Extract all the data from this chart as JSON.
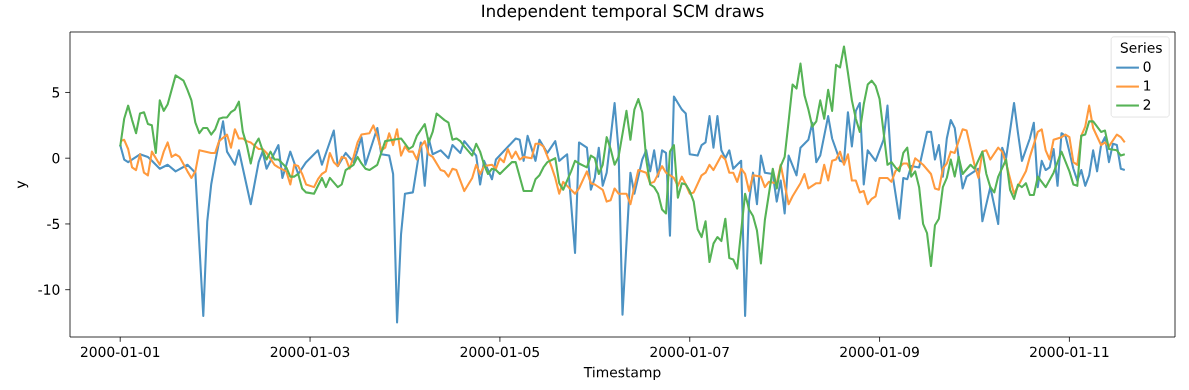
{
  "chart_data": {
    "type": "line",
    "title": "Independent temporal SCM draws",
    "xlabel": "Timestamp",
    "ylabel": "y",
    "legend_title": "Series",
    "legend": "top right",
    "xlim": [
      "1999-12-31T11:18",
      "2000-01-12T02:42"
    ],
    "ylim": [
      -13.6,
      9.6
    ],
    "xticks": [
      "2000-01-01",
      "2000-01-03",
      "2000-01-05",
      "2000-01-07",
      "2000-01-09",
      "2000-01-11"
    ],
    "yticks": [
      -10,
      -5,
      0,
      5
    ],
    "series": [
      {
        "name": "0",
        "color": "#4c92c3",
        "x": [
          "2000-01-01T00:00",
          "2000-01-01T01:00",
          "2000-01-01T02:00",
          "2000-01-01T05:00",
          "2000-01-01T07:00",
          "2000-01-01T08:00",
          "2000-01-01T10:00",
          "2000-01-01T12:00",
          "2000-01-01T14:00",
          "2000-01-01T17:00",
          "2000-01-01T19:00",
          "2000-01-01T21:00",
          "2000-01-01T22:00",
          "2000-01-01T23:00",
          "2000-01-02T00:00",
          "2000-01-02T02:00",
          "2000-01-02T03:00",
          "2000-01-02T05:00",
          "2000-01-02T06:00",
          "2000-01-02T09:00",
          "2000-01-02T11:00",
          "2000-01-02T12:00",
          "2000-01-02T13:00",
          "2000-01-02T16:00",
          "2000-01-02T17:00",
          "2000-01-02T19:00",
          "2000-01-02T21:00",
          "2000-01-02T23:00",
          "2000-01-03T02:00",
          "2000-01-03T03:00",
          "2000-01-03T06:00",
          "2000-01-03T07:00",
          "2000-01-03T09:00",
          "2000-01-03T11:00",
          "2000-01-03T12:00",
          "2000-01-03T13:00",
          "2000-01-03T14:00",
          "2000-01-03T17:00",
          "2000-01-03T18:00",
          "2000-01-03T20:00",
          "2000-01-03T21:00",
          "2000-01-03T22:00",
          "2000-01-03T23:00",
          "2000-01-04T00:00",
          "2000-01-04T02:00",
          "2000-01-04T04:00",
          "2000-01-04T05:00",
          "2000-01-04T06:00",
          "2000-01-04T07:00",
          "2000-01-04T09:00",
          "2000-01-04T11:00",
          "2000-01-04T12:00",
          "2000-01-04T14:00",
          "2000-01-04T15:00",
          "2000-01-04T18:00",
          "2000-01-04T19:00",
          "2000-01-04T20:00",
          "2000-01-04T22:00",
          "2000-01-04T23:00",
          "2000-01-05T04:00",
          "2000-01-05T05:00",
          "2000-01-05T06:00",
          "2000-01-05T07:00",
          "2000-01-05T09:00",
          "2000-01-05T10:00",
          "2000-01-05T12:00",
          "2000-01-05T14:00",
          "2000-01-05T15:00",
          "2000-01-05T17:00",
          "2000-01-05T19:00",
          "2000-01-05T20:00",
          "2000-01-05T22:00",
          "2000-01-05T23:00",
          "2000-01-06T00:00",
          "2000-01-06T01:00",
          "2000-01-06T02:00",
          "2000-01-06T03:00",
          "2000-01-06T05:00",
          "2000-01-06T06:00",
          "2000-01-06T07:00",
          "2000-01-06T09:00",
          "2000-01-06T10:00",
          "2000-01-06T12:00",
          "2000-01-06T13:00",
          "2000-01-06T14:00",
          "2000-01-06T15:00",
          "2000-01-06T16:00",
          "2000-01-06T17:00",
          "2000-01-06T18:00",
          "2000-01-06T19:00",
          "2000-01-06T20:00",
          "2000-01-06T22:00",
          "2000-01-06T23:00",
          "2000-01-07T00:00",
          "2000-01-07T02:00",
          "2000-01-07T03:00",
          "2000-01-07T04:00",
          "2000-01-07T05:00",
          "2000-01-07T06:00",
          "2000-01-07T07:00",
          "2000-01-07T08:00",
          "2000-01-07T09:00",
          "2000-01-07T10:00",
          "2000-01-07T11:00",
          "2000-01-07T13:00",
          "2000-01-07T14:00",
          "2000-01-07T15:00",
          "2000-01-07T16:00",
          "2000-01-07T17:00",
          "2000-01-07T18:00",
          "2000-01-07T19:00",
          "2000-01-07T21:00",
          "2000-01-07T22:00",
          "2000-01-07T23:00",
          "2000-01-08T00:00",
          "2000-01-08T01:00",
          "2000-01-08T03:00",
          "2000-01-08T04:00",
          "2000-01-08T06:00",
          "2000-01-08T07:00",
          "2000-01-08T08:00",
          "2000-01-08T09:00",
          "2000-01-08T11:00",
          "2000-01-08T12:00",
          "2000-01-08T14:00",
          "2000-01-08T15:00",
          "2000-01-08T16:00",
          "2000-01-08T17:00",
          "2000-01-08T18:00",
          "2000-01-08T19:00",
          "2000-01-08T20:00",
          "2000-01-08T21:00",
          "2000-01-08T23:00",
          "2000-01-09T01:00",
          "2000-01-09T02:00",
          "2000-01-09T03:00",
          "2000-01-09T05:00",
          "2000-01-09T06:00",
          "2000-01-09T07:00",
          "2000-01-09T08:00",
          "2000-01-09T10:00",
          "2000-01-09T12:00",
          "2000-01-09T13:00",
          "2000-01-09T14:00",
          "2000-01-09T15:00",
          "2000-01-09T16:00",
          "2000-01-09T17:00",
          "2000-01-09T18:00",
          "2000-01-09T19:00",
          "2000-01-09T21:00",
          "2000-01-09T22:00",
          "2000-01-10T01:00",
          "2000-01-10T02:00",
          "2000-01-10T04:00",
          "2000-01-10T06:00",
          "2000-01-10T07:00",
          "2000-01-10T08:00",
          "2000-01-10T10:00",
          "2000-01-10T11:00",
          "2000-01-10T12:00",
          "2000-01-10T14:00",
          "2000-01-10T15:00",
          "2000-01-10T16:00",
          "2000-01-10T17:00",
          "2000-01-10T18:00",
          "2000-01-10T19:00",
          "2000-01-10T20:00",
          "2000-01-10T21:00",
          "2000-01-10T22:00",
          "2000-01-10T23:00",
          "2000-01-11T00:00",
          "2000-01-11T01:00",
          "2000-01-11T02:00",
          "2000-01-11T03:00",
          "2000-01-11T04:00",
          "2000-01-11T05:00",
          "2000-01-11T06:00",
          "2000-01-11T07:00",
          "2000-01-11T08:00",
          "2000-01-11T09:00",
          "2000-01-11T10:00",
          "2000-01-11T11:00",
          "2000-01-11T12:00",
          "2000-01-11T13:00",
          "2000-01-11T14:00"
        ],
        "values": [
          1.0,
          -0.1,
          -0.3,
          0.3,
          0.1,
          -0.2,
          -0.8,
          -0.5,
          -1.0,
          -0.5,
          -1.1,
          -12.0,
          -4.8,
          -2.0,
          -0.3,
          2.8,
          0.5,
          -0.5,
          0.6,
          -3.5,
          -0.3,
          0.5,
          -0.8,
          1.0,
          -1.5,
          0.5,
          -1.2,
          -0.3,
          0.6,
          -0.5,
          2.1,
          -0.6,
          0.4,
          -0.3,
          0.6,
          1.6,
          -0.5,
          2.3,
          0.3,
          0.2,
          -1.2,
          -12.5,
          -5.8,
          -2.7,
          -2.6,
          1.2,
          -2.1,
          1.5,
          0.3,
          0.6,
          0.0,
          1.0,
          0.4,
          1.3,
          0.2,
          -2.0,
          -0.2,
          -1.6,
          -0.1,
          1.5,
          1.4,
          -0.2,
          1.7,
          -0.2,
          1.4,
          0.4,
          1.3,
          -0.2,
          0.3,
          -7.2,
          1.2,
          0.8,
          -2.4,
          -1.5,
          0.8,
          -2.1,
          -1.1,
          4.2,
          0.6,
          -11.9,
          -1.1,
          -2.7,
          -0.1,
          0.6,
          -1.0,
          0.6,
          -1.4,
          0.6,
          0.4,
          -5.9,
          4.7,
          3.7,
          3.4,
          0.3,
          0.2,
          1.0,
          1.2,
          3.2,
          0.8,
          3.2,
          0.6,
          0.0,
          0.6,
          -0.8,
          -0.2,
          -12.0,
          -3.3,
          -1.1,
          -3.5,
          0.2,
          -1.1,
          -1.2,
          -3.3,
          -1.7,
          -4.2,
          0.2,
          -1.3,
          0.8,
          1.4,
          2.7,
          -0.3,
          0.2,
          3.2,
          1.5,
          -0.2,
          -0.3,
          3.5,
          0.9,
          3.6,
          4.2,
          -2.0,
          0.6,
          -0.2,
          1.4,
          4.0,
          -0.7,
          -4.6,
          -1.5,
          -1.6,
          -0.6,
          -0.7,
          2.0,
          2.0,
          -0.1,
          1.0,
          -1.4,
          1.5,
          2.9,
          2.3,
          -2.3,
          -1.4,
          -0.8,
          -4.8,
          -2.2,
          -5.0,
          0.8,
          0.0,
          4.2,
          1.9,
          -0.2,
          1.5,
          2.7,
          -2.2,
          -0.2,
          -0.9,
          -0.7,
          0.7,
          -2.1,
          1.9,
          1.7,
          0.5,
          -0.8,
          -1.7,
          -0.9,
          -2.1,
          -1.3,
          0.6,
          -1.0,
          1.0,
          1.6,
          -0.3,
          1.1,
          1.0,
          -0.8,
          -0.9
        ]
      },
      {
        "name": "1",
        "color": "#ff9a3e",
        "x": [
          "2000-01-01T00:00",
          "2000-01-01T01:00",
          "2000-01-01T02:00",
          "2000-01-01T03:00",
          "2000-01-01T04:00",
          "2000-01-01T05:00",
          "2000-01-01T06:00",
          "2000-01-01T07:00",
          "2000-01-01T08:00",
          "2000-01-01T10:00",
          "2000-01-01T11:00",
          "2000-01-01T12:00",
          "2000-01-01T13:00",
          "2000-01-01T14:00",
          "2000-01-01T15:00",
          "2000-01-01T17:00",
          "2000-01-01T18:00",
          "2000-01-01T19:00",
          "2000-01-01T20:00",
          "2000-01-01T23:00",
          "2000-01-02T00:00",
          "2000-01-02T01:00",
          "2000-01-02T03:00",
          "2000-01-02T04:00",
          "2000-01-02T05:00",
          "2000-01-02T06:00",
          "2000-01-02T07:00",
          "2000-01-02T08:00",
          "2000-01-02T09:00",
          "2000-01-02T11:00",
          "2000-01-02T12:00",
          "2000-01-02T13:00",
          "2000-01-02T15:00",
          "2000-01-02T16:00",
          "2000-01-02T18:00",
          "2000-01-02T19:00",
          "2000-01-02T20:00",
          "2000-01-02T21:00",
          "2000-01-02T22:00",
          "2000-01-02T23:00",
          "2000-01-03T01:00",
          "2000-01-03T02:00",
          "2000-01-03T03:00",
          "2000-01-03T04:00",
          "2000-01-03T05:00",
          "2000-01-03T06:00",
          "2000-01-03T07:00",
          "2000-01-03T08:00",
          "2000-01-03T09:00",
          "2000-01-03T10:00",
          "2000-01-03T11:00",
          "2000-01-03T12:00",
          "2000-01-03T13:00",
          "2000-01-03T15:00",
          "2000-01-03T16:00",
          "2000-01-03T17:00",
          "2000-01-03T18:00",
          "2000-01-03T19:00",
          "2000-01-03T20:00",
          "2000-01-03T21:00",
          "2000-01-03T22:00",
          "2000-01-03T23:00",
          "2000-01-04T00:00",
          "2000-01-04T01:00",
          "2000-01-04T02:00",
          "2000-01-04T03:00",
          "2000-01-04T04:00",
          "2000-01-04T05:00",
          "2000-01-04T06:00",
          "2000-01-04T07:00",
          "2000-01-04T09:00",
          "2000-01-04T10:00",
          "2000-01-04T11:00",
          "2000-01-04T12:00",
          "2000-01-04T13:00",
          "2000-01-04T14:00",
          "2000-01-04T15:00",
          "2000-01-04T17:00",
          "2000-01-04T18:00",
          "2000-01-04T19:00",
          "2000-01-04T20:00",
          "2000-01-04T22:00",
          "2000-01-04T23:00",
          "2000-01-05T00:00",
          "2000-01-05T01:00",
          "2000-01-05T02:00",
          "2000-01-05T03:00",
          "2000-01-05T04:00",
          "2000-01-05T05:00",
          "2000-01-05T06:00",
          "2000-01-05T08:00",
          "2000-01-05T09:00",
          "2000-01-05T10:00",
          "2000-01-05T11:00",
          "2000-01-05T13:00",
          "2000-01-05T14:00",
          "2000-01-05T15:00",
          "2000-01-05T16:00",
          "2000-01-05T19:00",
          "2000-01-05T20:00",
          "2000-01-05T22:00",
          "2000-01-05T23:00",
          "2000-01-06T00:00",
          "2000-01-06T02:00",
          "2000-01-06T03:00",
          "2000-01-06T04:00",
          "2000-01-06T05:00",
          "2000-01-06T06:00",
          "2000-01-06T08:00",
          "2000-01-06T09:00",
          "2000-01-06T11:00",
          "2000-01-06T13:00",
          "2000-01-06T14:00",
          "2000-01-06T15:00",
          "2000-01-06T17:00",
          "2000-01-06T18:00",
          "2000-01-06T20:00",
          "2000-01-06T21:00",
          "2000-01-06T22:00",
          "2000-01-06T23:00",
          "2000-01-07T00:00",
          "2000-01-07T01:00",
          "2000-01-07T03:00",
          "2000-01-07T04:00",
          "2000-01-07T05:00",
          "2000-01-07T06:00",
          "2000-01-07T08:00",
          "2000-01-07T09:00",
          "2000-01-07T10:00",
          "2000-01-07T11:00",
          "2000-01-07T12:00",
          "2000-01-07T13:00",
          "2000-01-07T14:00",
          "2000-01-07T15:00",
          "2000-01-07T16:00",
          "2000-01-07T18:00",
          "2000-01-07T19:00",
          "2000-01-07T20:00",
          "2000-01-07T22:00",
          "2000-01-07T23:00",
          "2000-01-08T01:00",
          "2000-01-08T02:00",
          "2000-01-08T04:00",
          "2000-01-08T05:00",
          "2000-01-08T06:00",
          "2000-01-08T08:00",
          "2000-01-08T09:00",
          "2000-01-08T10:00",
          "2000-01-08T11:00",
          "2000-01-08T12:00",
          "2000-01-08T13:00",
          "2000-01-08T14:00",
          "2000-01-08T15:00",
          "2000-01-08T16:00",
          "2000-01-08T17:00",
          "2000-01-08T18:00",
          "2000-01-08T19:00",
          "2000-01-08T20:00",
          "2000-01-08T21:00",
          "2000-01-08T22:00",
          "2000-01-08T23:00",
          "2000-01-09T00:00",
          "2000-01-09T02:00",
          "2000-01-09T03:00",
          "2000-01-09T04:00",
          "2000-01-09T06:00",
          "2000-01-09T07:00",
          "2000-01-09T08:00",
          "2000-01-09T09:00",
          "2000-01-09T11:00",
          "2000-01-09T13:00",
          "2000-01-09T14:00",
          "2000-01-09T15:00",
          "2000-01-09T16:00",
          "2000-01-09T17:00",
          "2000-01-09T18:00",
          "2000-01-09T19:00",
          "2000-01-09T21:00",
          "2000-01-09T22:00",
          "2000-01-09T23:00",
          "2000-01-10T00:00",
          "2000-01-10T01:00",
          "2000-01-10T02:00",
          "2000-01-10T03:00",
          "2000-01-10T04:00",
          "2000-01-10T06:00",
          "2000-01-10T07:00",
          "2000-01-10T08:00",
          "2000-01-10T10:00",
          "2000-01-10T13:00",
          "2000-01-10T14:00",
          "2000-01-10T16:00",
          "2000-01-10T17:00",
          "2000-01-10T18:00",
          "2000-01-10T19:00",
          "2000-01-10T20:00",
          "2000-01-10T22:00",
          "2000-01-10T23:00",
          "2000-01-11T00:00",
          "2000-01-11T01:00",
          "2000-01-11T02:00",
          "2000-01-11T03:00",
          "2000-01-11T04:00",
          "2000-01-11T05:00",
          "2000-01-11T06:00",
          "2000-01-11T08:00",
          "2000-01-11T09:00",
          "2000-01-11T10:00",
          "2000-01-11T12:00",
          "2000-01-11T13:00",
          "2000-01-11T14:00"
        ],
        "values": [
          1.3,
          1.4,
          0.7,
          -0.7,
          -0.9,
          0.3,
          -1.1,
          -1.3,
          0.5,
          -0.5,
          0.5,
          1.2,
          0.1,
          0.3,
          0.1,
          -1.0,
          -1.5,
          -1.0,
          0.6,
          0.4,
          0.4,
          1.3,
          1.8,
          0.8,
          2.2,
          1.5,
          1.5,
          1.3,
          1.2,
          0.7,
          0.7,
          0.4,
          -0.5,
          -0.7,
          -1.0,
          -2.0,
          -0.5,
          -0.6,
          -1.2,
          -2.0,
          -2.2,
          -1.6,
          -1.2,
          -1.0,
          0.4,
          -0.3,
          -0.6,
          0.1,
          0.0,
          -0.8,
          0.1,
          1.2,
          1.8,
          1.9,
          2.5,
          1.7,
          0.6,
          0.8,
          1.9,
          1.0,
          2.2,
          0.2,
          0.9,
          0.5,
          0.5,
          -0.1,
          0.9,
          1.3,
          0.3,
          0.1,
          -0.9,
          -1.0,
          -1.4,
          -0.8,
          -0.9,
          -1.7,
          -2.5,
          -1.5,
          -0.5,
          -1.2,
          -0.6,
          -0.5,
          -0.8,
          0.0,
          -0.3,
          0.7,
          0.0,
          0.5,
          -0.1,
          0.1,
          0.0,
          1.1,
          1.1,
          0.9,
          -0.6,
          -1.5,
          -2.7,
          -1.8,
          -2.7,
          -2.3,
          -1.0,
          -1.9,
          -2.0,
          -2.4,
          -3.3,
          -3.2,
          -2.3,
          -2.7,
          -2.7,
          -3.5,
          -0.9,
          -1.1,
          -1.9,
          -1.8,
          -0.6,
          -1.1,
          -1.5,
          -2.1,
          -1.4,
          -2.0,
          -2.7,
          -2.6,
          -1.3,
          -1.1,
          -0.5,
          -0.9,
          0.2,
          -0.1,
          -1.1,
          -1.1,
          -1.8,
          -0.8,
          -1.2,
          -2.5,
          -1.3,
          -1.4,
          -2.2,
          -1.8,
          -1.9,
          -0.5,
          -3.5,
          -2.9,
          -1.9,
          -1.2,
          -2.3,
          -1.9,
          -1.9,
          -0.5,
          -1.7,
          -0.2,
          -0.1,
          0.5,
          -0.5,
          0.3,
          -1.7,
          -1.7,
          -2.6,
          -2.5,
          -3.5,
          -3.1,
          -2.9,
          -1.5,
          -1.5,
          -1.8,
          -1.0,
          -0.4,
          -0.4,
          -1.0,
          0.0,
          -0.5,
          -1.2,
          -2.3,
          -2.4,
          -0.8,
          -0.4,
          0.5,
          0.4,
          2.2,
          2.1,
          0.8,
          -0.5,
          -1.5,
          0.5,
          0.6,
          -0.1,
          0.8,
          0.5,
          -0.4,
          -2.7,
          -1.0,
          0.1,
          2.0,
          2.2,
          0.6,
          -0.1,
          1.4,
          1.6,
          1.8,
          1.6,
          -0.3,
          -0.5,
          1.7,
          2.4,
          4.0,
          2.3,
          1.0,
          1.2,
          0.9,
          1.8,
          1.6,
          1.2
        ]
      },
      {
        "name": "2",
        "color": "#56b356",
        "x": [
          "2000-01-01T00:00",
          "2000-01-01T01:00",
          "2000-01-01T02:00",
          "2000-01-01T03:00",
          "2000-01-01T04:00",
          "2000-01-01T05:00",
          "2000-01-01T06:00",
          "2000-01-01T07:00",
          "2000-01-01T08:00",
          "2000-01-01T09:00",
          "2000-01-01T10:00",
          "2000-01-01T11:00",
          "2000-01-01T12:00",
          "2000-01-01T14:00",
          "2000-01-01T16:00",
          "2000-01-01T17:00",
          "2000-01-01T18:00",
          "2000-01-01T19:00",
          "2000-01-01T20:00",
          "2000-01-01T21:00",
          "2000-01-01T22:00",
          "2000-01-01T23:00",
          "2000-01-02T00:00",
          "2000-01-02T01:00",
          "2000-01-02T02:00",
          "2000-01-02T03:00",
          "2000-01-02T04:00",
          "2000-01-02T05:00",
          "2000-01-02T06:00",
          "2000-01-02T07:00",
          "2000-01-02T08:00",
          "2000-01-02T09:00",
          "2000-01-02T10:00",
          "2000-01-02T11:00",
          "2000-01-02T12:00",
          "2000-01-02T13:00",
          "2000-01-02T14:00",
          "2000-01-02T15:00",
          "2000-01-02T16:00",
          "2000-01-02T18:00",
          "2000-01-02T19:00",
          "2000-01-02T20:00",
          "2000-01-02T21:00",
          "2000-01-02T22:00",
          "2000-01-02T23:00",
          "2000-01-03T01:00",
          "2000-01-03T02:00",
          "2000-01-03T03:00",
          "2000-01-03T04:00",
          "2000-01-03T05:00",
          "2000-01-03T07:00",
          "2000-01-03T08:00",
          "2000-01-03T09:00",
          "2000-01-03T11:00",
          "2000-01-03T12:00",
          "2000-01-03T13:00",
          "2000-01-03T14:00",
          "2000-01-03T15:00",
          "2000-01-03T17:00",
          "2000-01-03T18:00",
          "2000-01-03T19:00",
          "2000-01-03T21:00",
          "2000-01-03T23:00",
          "2000-01-04T00:00",
          "2000-01-04T01:00",
          "2000-01-04T02:00",
          "2000-01-04T03:00",
          "2000-01-04T05:00",
          "2000-01-04T06:00",
          "2000-01-04T07:00",
          "2000-01-04T08:00",
          "2000-01-04T10:00",
          "2000-01-04T11:00",
          "2000-01-04T12:00",
          "2000-01-04T13:00",
          "2000-01-04T14:00",
          "2000-01-04T15:00",
          "2000-01-04T17:00",
          "2000-01-04T18:00",
          "2000-01-04T19:00",
          "2000-01-04T20:00",
          "2000-01-04T21:00",
          "2000-01-04T22:00",
          "2000-01-04T23:00",
          "2000-01-05T00:00",
          "2000-01-05T01:00",
          "2000-01-05T03:00",
          "2000-01-05T04:00",
          "2000-01-05T06:00",
          "2000-01-05T08:00",
          "2000-01-05T09:00",
          "2000-01-05T10:00",
          "2000-01-05T11:00",
          "2000-01-05T12:00",
          "2000-01-05T14:00",
          "2000-01-05T15:00",
          "2000-01-05T16:00",
          "2000-01-05T18:00",
          "2000-01-05T19:00",
          "2000-01-05T20:00",
          "2000-01-05T22:00",
          "2000-01-05T23:00",
          "2000-01-06T00:00",
          "2000-01-06T01:00",
          "2000-01-06T02:00",
          "2000-01-06T03:00",
          "2000-01-06T04:00",
          "2000-01-06T05:00",
          "2000-01-06T06:00",
          "2000-01-06T08:00",
          "2000-01-06T09:00",
          "2000-01-06T10:00",
          "2000-01-06T11:00",
          "2000-01-06T12:00",
          "2000-01-06T13:00",
          "2000-01-06T14:00",
          "2000-01-06T15:00",
          "2000-01-06T16:00",
          "2000-01-06T17:00",
          "2000-01-06T18:00",
          "2000-01-06T19:00",
          "2000-01-06T20:00",
          "2000-01-06T21:00",
          "2000-01-06T22:00",
          "2000-01-06T23:00",
          "2000-01-07T00:00",
          "2000-01-07T01:00",
          "2000-01-07T02:00",
          "2000-01-07T03:00",
          "2000-01-07T04:00",
          "2000-01-07T05:00",
          "2000-01-07T06:00",
          "2000-01-07T07:00",
          "2000-01-07T08:00",
          "2000-01-07T09:00",
          "2000-01-07T10:00",
          "2000-01-07T11:00",
          "2000-01-07T12:00",
          "2000-01-07T14:00",
          "2000-01-07T15:00",
          "2000-01-07T16:00",
          "2000-01-07T17:00",
          "2000-01-07T18:00",
          "2000-01-07T19:00",
          "2000-01-07T21:00",
          "2000-01-07T22:00",
          "2000-01-07T23:00",
          "2000-01-08T00:00",
          "2000-01-08T01:00",
          "2000-01-08T02:00",
          "2000-01-08T03:00",
          "2000-01-08T04:00",
          "2000-01-08T05:00",
          "2000-01-08T06:00",
          "2000-01-08T07:00",
          "2000-01-08T08:00",
          "2000-01-08T09:00",
          "2000-01-08T10:00",
          "2000-01-08T11:00",
          "2000-01-08T12:00",
          "2000-01-08T13:00",
          "2000-01-08T14:00",
          "2000-01-08T15:00",
          "2000-01-08T16:00",
          "2000-01-08T17:00",
          "2000-01-08T18:00",
          "2000-01-08T19:00",
          "2000-01-08T20:00",
          "2000-01-08T21:00",
          "2000-01-08T22:00",
          "2000-01-08T23:00",
          "2000-01-09T00:00",
          "2000-01-09T01:00",
          "2000-01-09T02:00",
          "2000-01-09T03:00",
          "2000-01-09T04:00",
          "2000-01-09T05:00",
          "2000-01-09T06:00",
          "2000-01-09T07:00",
          "2000-01-09T08:00",
          "2000-01-09T09:00",
          "2000-01-09T10:00",
          "2000-01-09T11:00",
          "2000-01-09T12:00",
          "2000-01-09T13:00",
          "2000-01-09T14:00",
          "2000-01-09T15:00",
          "2000-01-09T16:00",
          "2000-01-09T17:00",
          "2000-01-09T18:00",
          "2000-01-09T19:00",
          "2000-01-09T20:00",
          "2000-01-09T21:00",
          "2000-01-09T23:00",
          "2000-01-10T00:00",
          "2000-01-10T02:00",
          "2000-01-10T03:00",
          "2000-01-10T04:00",
          "2000-01-10T05:00",
          "2000-01-10T06:00",
          "2000-01-10T08:00",
          "2000-01-10T09:00",
          "2000-01-10T10:00",
          "2000-01-10T11:00",
          "2000-01-10T12:00",
          "2000-01-10T13:00",
          "2000-01-10T14:00",
          "2000-01-10T15:00",
          "2000-01-10T16:00",
          "2000-01-10T18:00",
          "2000-01-10T20:00",
          "2000-01-10T22:00",
          "2000-01-11T00:00",
          "2000-01-11T01:00",
          "2000-01-11T02:00",
          "2000-01-11T03:00",
          "2000-01-11T04:00",
          "2000-01-11T05:00",
          "2000-01-11T06:00",
          "2000-01-11T08:00",
          "2000-01-11T09:00",
          "2000-01-11T10:00",
          "2000-01-11T12:00",
          "2000-01-11T13:00",
          "2000-01-11T14:00"
        ],
        "values": [
          0.9,
          3.0,
          4.0,
          2.9,
          1.9,
          3.4,
          3.5,
          2.6,
          2.5,
          0.4,
          4.4,
          3.6,
          4.1,
          6.3,
          5.9,
          5.2,
          4.4,
          2.7,
          1.9,
          2.3,
          2.3,
          1.8,
          2.2,
          3.0,
          3.1,
          3.1,
          3.5,
          3.7,
          4.3,
          2.0,
          1.0,
          -0.4,
          1.0,
          1.5,
          0.6,
          -0.1,
          0.5,
          -0.1,
          -0.1,
          -0.7,
          -1.4,
          -1.4,
          -1.2,
          -2.3,
          -2.6,
          -2.7,
          -2.1,
          -1.5,
          -2.2,
          -1.5,
          -2.2,
          -2.0,
          -0.9,
          -0.5,
          0.1,
          -0.4,
          -0.8,
          -0.9,
          -0.5,
          0.4,
          1.3,
          1.4,
          1.5,
          1.1,
          0.7,
          0.9,
          1.7,
          2.6,
          1.2,
          2.0,
          3.4,
          2.9,
          2.7,
          1.4,
          1.5,
          1.3,
          0.9,
          0.2,
          1.1,
          0.5,
          -0.5,
          -1.2,
          -0.8,
          -0.9,
          -1.2,
          -0.9,
          -0.3,
          -0.3,
          -2.5,
          -2.5,
          -1.6,
          -1.3,
          -0.7,
          -0.3,
          0.0,
          -1.9,
          -2.4,
          -1.0,
          -0.2,
          -0.4,
          -0.7,
          0.2,
          0.0,
          -1.2,
          -0.5,
          1.6,
          0.7,
          -0.5,
          0.1,
          3.6,
          1.4,
          3.7,
          4.5,
          3.5,
          -0.1,
          -2.0,
          -2.2,
          -2.7,
          -3.9,
          -4.2,
          0.5,
          1.0,
          -3.0,
          -1.9,
          -2.0,
          -2.5,
          -3.3,
          -5.4,
          -6.0,
          -4.8,
          -7.9,
          -6.5,
          -6.0,
          -6.3,
          -4.6,
          -7.6,
          -7.7,
          -8.4,
          -2.7,
          -3.9,
          -4.4,
          -5.5,
          -8.0,
          -4.7,
          -0.8,
          -2.3,
          -0.6,
          0.1,
          2.8,
          5.6,
          5.3,
          7.2,
          4.8,
          3.7,
          2.4,
          2.8,
          4.4,
          3.0,
          5.2,
          3.6,
          7.1,
          6.9,
          8.5,
          6.5,
          4.4,
          3.0,
          2.0,
          4.1,
          5.6,
          5.9,
          5.5,
          4.5,
          2.0,
          -0.5,
          -0.3,
          -0.7,
          -1.0,
          0.4,
          0.8,
          -1.4,
          -1.0,
          -2.2,
          -5.0,
          -5.7,
          -8.2,
          -5.1,
          -4.6,
          -2.2,
          -1.5,
          -0.1,
          -1.4,
          0.1,
          -1.2,
          -0.5,
          -0.8,
          0.5,
          -1.2,
          -2.2,
          -2.6,
          -1.4,
          -0.1,
          -2.4,
          -3.1,
          -2.0,
          -2.2,
          -1.9,
          -2.8,
          -2.8,
          -1.4,
          -2.2,
          -1.1,
          0.5,
          -1.0,
          -2.0,
          -2.1,
          1.7,
          1.8,
          2.8,
          2.8,
          2.0,
          2.1,
          0.7,
          0.6,
          0.2,
          0.3
        ]
      }
    ]
  }
}
